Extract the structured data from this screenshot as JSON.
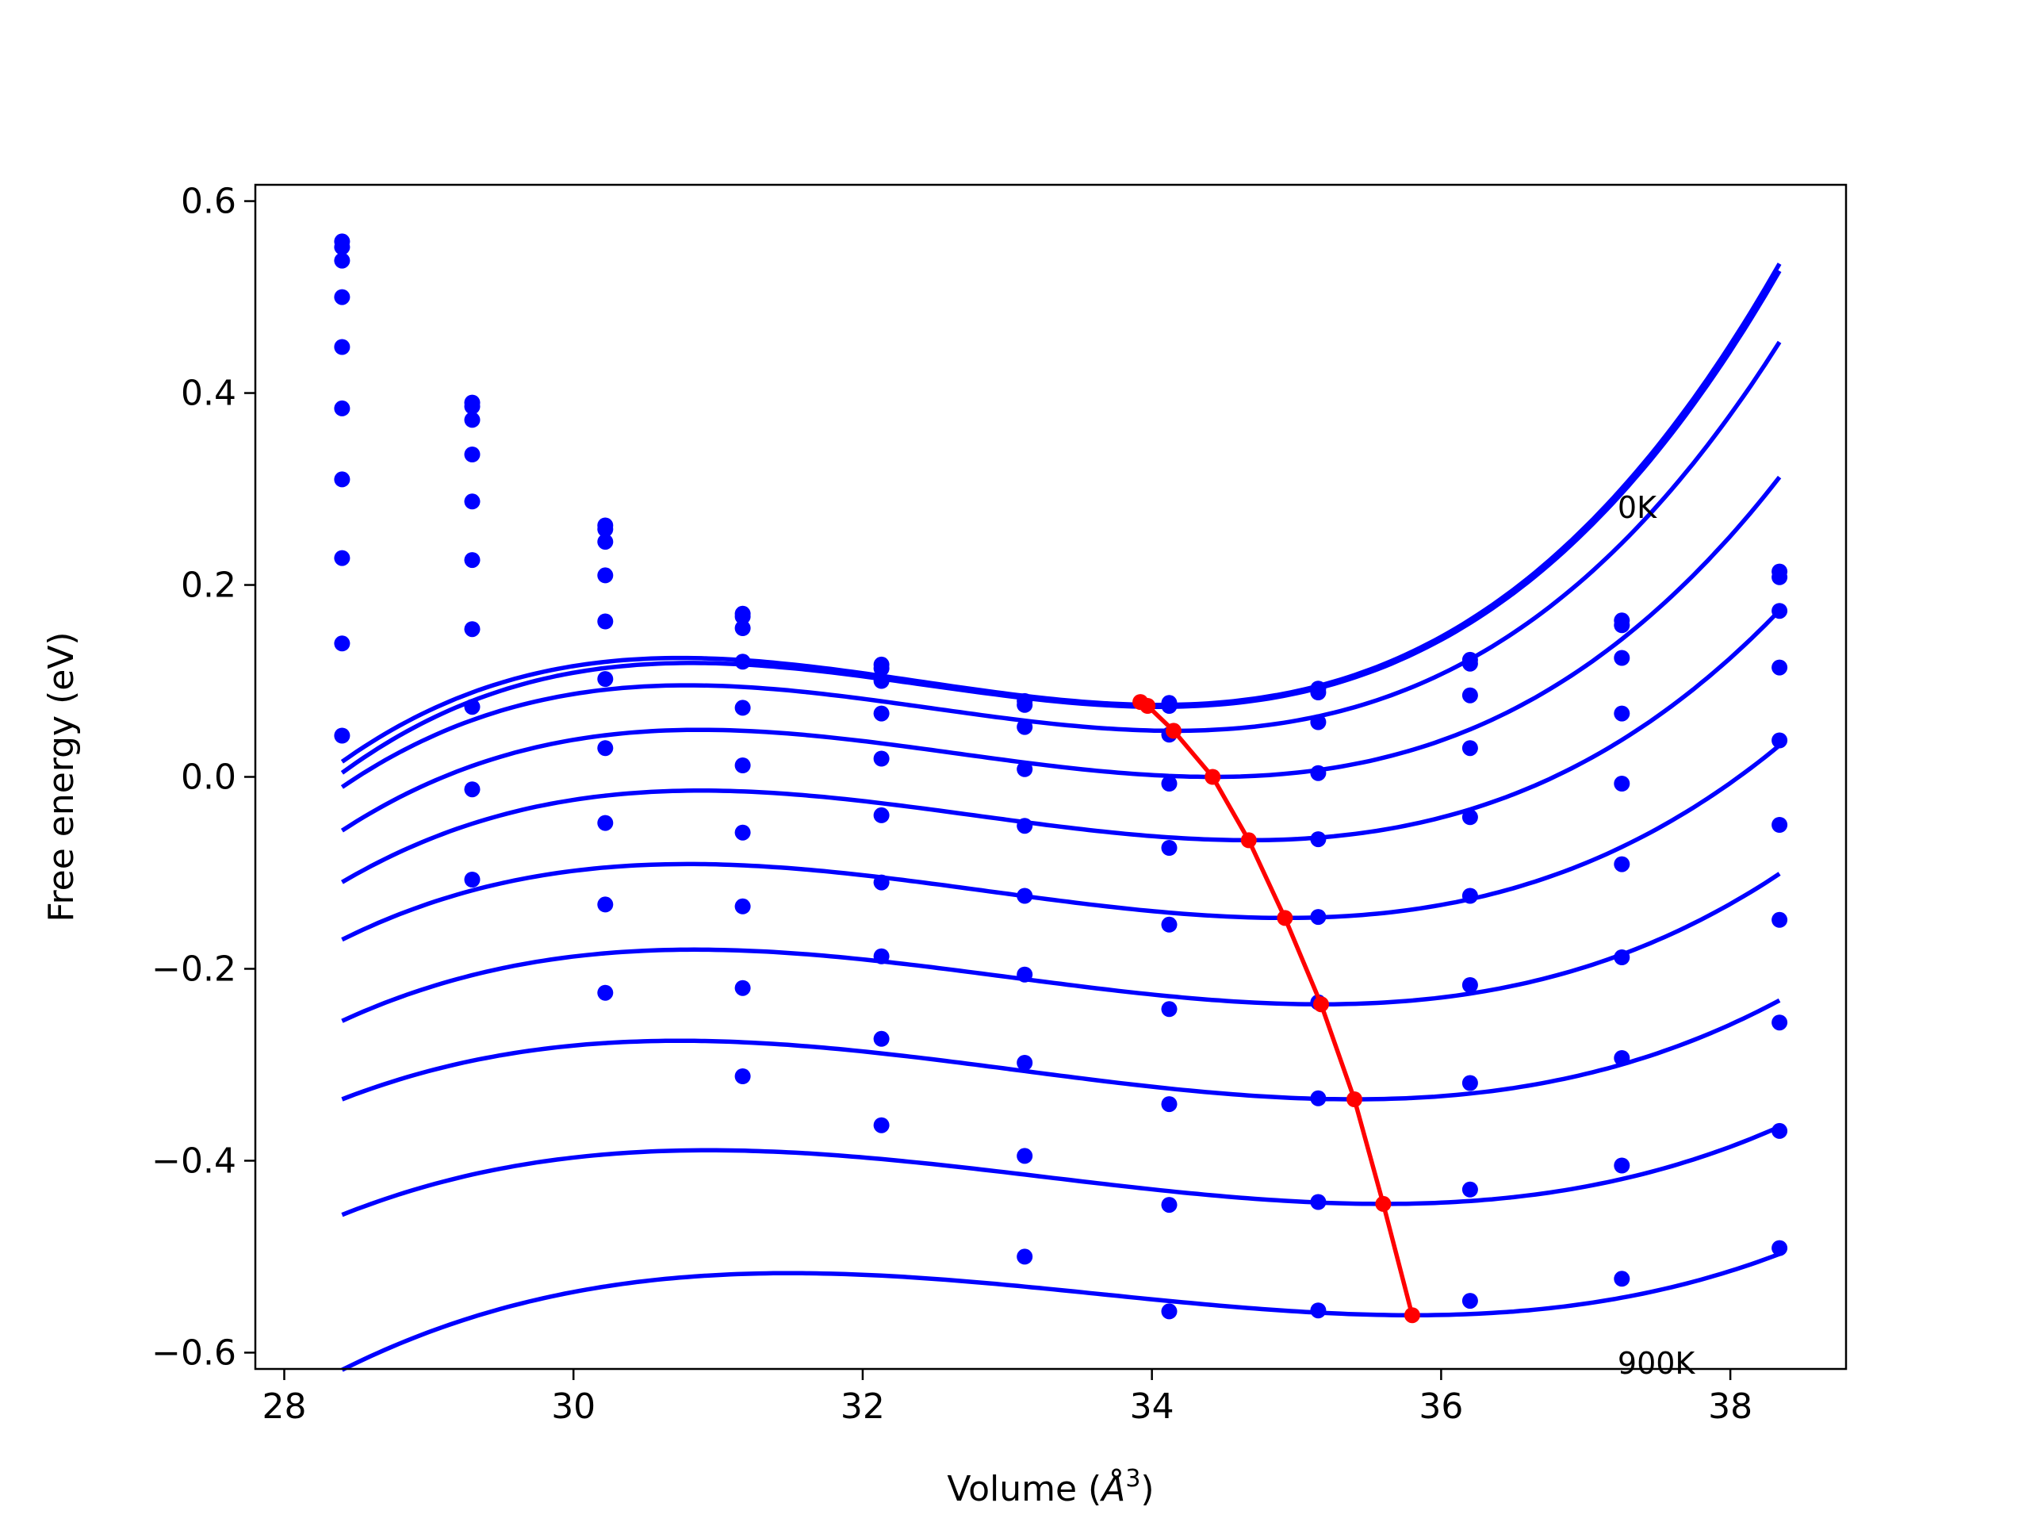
{
  "chart_data": {
    "type": "line",
    "title": "",
    "xlabel": "Volume (",
    "xlabel_symbol": "Å",
    "xlabel_exponent": "3",
    "xlabel_close": ")",
    "ylabel": "Free energy (eV)",
    "xlim": [
      27.8,
      38.8
    ],
    "ylim": [
      -0.617,
      0.617
    ],
    "xticks": [
      28,
      30,
      32,
      34,
      36,
      38
    ],
    "xtick_labels": [
      "28",
      "30",
      "32",
      "34",
      "36",
      "38"
    ],
    "yticks": [
      0.6,
      0.4,
      0.2,
      0.0,
      -0.2,
      -0.4,
      -0.6
    ],
    "ytick_labels": [
      "0.6",
      "0.4",
      "0.2",
      "0.0",
      "−0.2",
      "−0.4",
      "−0.6"
    ],
    "grid": false,
    "legend": "none",
    "annotations": [
      {
        "text": "0K",
        "x": 37.22,
        "y": 0.27
      },
      {
        "text": "900K",
        "x": 37.22,
        "y": -0.622
      }
    ],
    "colors": {
      "fit": "#0000ff",
      "points": "#0000ff",
      "minimum_path": "#ff0000"
    },
    "x_points": [
      28.4,
      29.3,
      30.22,
      31.17,
      32.13,
      33.12,
      34.12,
      35.15,
      36.2,
      37.25,
      38.34
    ],
    "series": [
      {
        "fit": {
          "vmin": 34.05,
          "emin": 0.075,
          "a": 0.0134,
          "b": 0.0027
        },
        "points": [
          0.558,
          0.39,
          0.262,
          0.17,
          0.117,
          0.079,
          0.077,
          0.092,
          0.122,
          0.163,
          0.214
        ]
      },
      {
        "fit": {
          "vmin": 34.05,
          "emin": 0.073,
          "a": 0.0131,
          "b": 0.0027
        },
        "points": [
          0.552,
          0.386,
          0.258,
          0.167,
          0.113,
          0.075,
          0.074,
          0.088,
          0.118,
          0.158,
          0.208
        ]
      },
      {
        "fit": {
          "vmin": 34.15,
          "emin": 0.048,
          "a": 0.0126,
          "b": 0.0025
        },
        "points": [
          0.538,
          0.372,
          0.245,
          0.155,
          0.1,
          0.052,
          0.044,
          0.057,
          0.085,
          0.124,
          0.173
        ]
      },
      {
        "fit": {
          "vmin": 34.42,
          "emin": 0.0,
          "a": 0.0117,
          "b": 0.0022
        },
        "points": [
          0.5,
          0.336,
          0.21,
          0.12,
          0.066,
          0.008,
          -0.007,
          0.004,
          0.03,
          0.066,
          0.114
        ]
      },
      {
        "fit": {
          "vmin": 34.67,
          "emin": -0.066,
          "a": 0.0108,
          "b": 0.0019
        },
        "points": [
          0.448,
          0.287,
          0.162,
          0.072,
          0.019,
          -0.051,
          -0.074,
          -0.065,
          -0.042,
          -0.007,
          0.038
        ]
      },
      {
        "fit": {
          "vmin": 34.92,
          "emin": -0.147,
          "a": 0.0099,
          "b": 0.0016
        },
        "points": [
          0.384,
          0.226,
          0.102,
          0.012,
          -0.04,
          -0.124,
          -0.154,
          -0.146,
          -0.124,
          -0.091,
          -0.05
        ]
      },
      {
        "fit": {
          "vmin": 35.17,
          "emin": -0.237,
          "a": 0.0091,
          "b": 0.0014
        },
        "points": [
          0.31,
          0.154,
          0.03,
          -0.058,
          -0.11,
          -0.206,
          -0.242,
          -0.235,
          -0.217,
          -0.188,
          -0.149
        ]
      },
      {
        "fit": {
          "vmin": 35.4,
          "emin": -0.336,
          "a": 0.0084,
          "b": 0.0012
        },
        "points": [
          0.228,
          0.073,
          -0.048,
          -0.135,
          -0.187,
          -0.298,
          -0.341,
          -0.335,
          -0.319,
          -0.293,
          -0.256
        ]
      },
      {
        "fit": {
          "vmin": 35.6,
          "emin": -0.445,
          "a": 0.0077,
          "b": 0.0011
        },
        "points": [
          0.139,
          -0.013,
          -0.133,
          -0.22,
          -0.273,
          -0.395,
          -0.446,
          -0.443,
          -0.43,
          -0.405,
          -0.369
        ]
      },
      {
        "fit": {
          "vmin": 35.8,
          "emin": -0.561,
          "a": 0.0071,
          "b": 0.0011
        },
        "points": [
          0.043,
          -0.107,
          -0.225,
          -0.312,
          -0.363,
          -0.5,
          -0.557,
          -0.556,
          -0.546,
          -0.523,
          -0.491
        ]
      }
    ],
    "minimum_path": {
      "x": [
        33.92,
        33.97,
        34.15,
        34.42,
        34.67,
        34.92,
        35.17,
        35.4,
        35.6,
        35.8
      ],
      "y": [
        0.078,
        0.074,
        0.048,
        0.0,
        -0.066,
        -0.147,
        -0.237,
        -0.336,
        -0.445,
        -0.561
      ]
    }
  }
}
